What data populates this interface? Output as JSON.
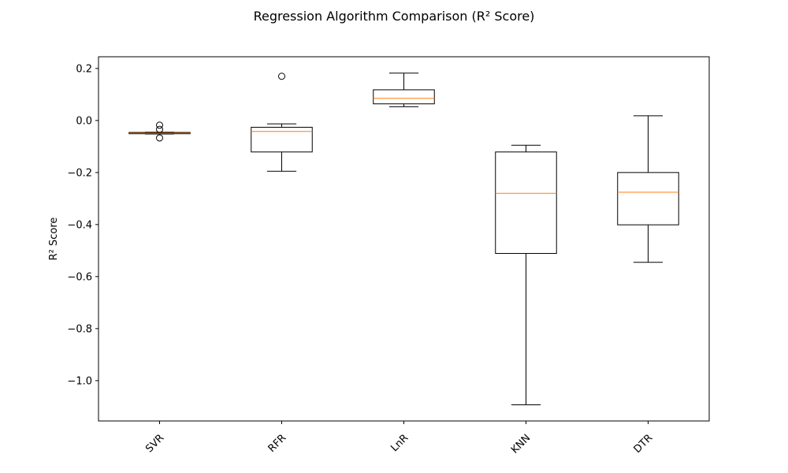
{
  "chart_data": {
    "type": "box",
    "title": "Regression Algorithm Comparison (R² Score)",
    "xlabel": "",
    "ylabel": "R² Score",
    "ylim": [
      -1.155,
      0.245
    ],
    "yticks": [
      0.2,
      0.0,
      -0.2,
      -0.4,
      -0.6,
      -0.8,
      -1.0
    ],
    "ytick_labels": [
      "0.2",
      "0.0",
      "−0.2",
      "−0.4",
      "−0.6",
      "−0.8",
      "−1.0"
    ],
    "grid": false,
    "categories": [
      "SVR",
      "RFR",
      "LnR",
      "KNN",
      "DTR"
    ],
    "boxes": [
      {
        "label": "SVR",
        "whislo": -0.052,
        "q1": -0.051,
        "med": -0.049,
        "q3": -0.046,
        "whishi": -0.045,
        "fliers": [
          -0.018,
          -0.034,
          -0.067
        ]
      },
      {
        "label": "RFR",
        "whislo": -0.195,
        "q1": -0.121,
        "med": -0.042,
        "q3": -0.026,
        "whishi": -0.013,
        "fliers": [
          0.17
        ]
      },
      {
        "label": "LnR",
        "whislo": 0.053,
        "q1": 0.064,
        "med": 0.085,
        "q3": 0.118,
        "whishi": 0.182,
        "fliers": []
      },
      {
        "label": "KNN",
        "whislo": -1.093,
        "q1": -0.511,
        "med": -0.28,
        "q3": -0.121,
        "whishi": -0.095,
        "fliers": []
      },
      {
        "label": "DTR",
        "whislo": -0.545,
        "q1": -0.401,
        "med": -0.276,
        "q3": -0.2,
        "whishi": 0.018,
        "fliers": []
      }
    ],
    "colors": {
      "box": "#000000",
      "median": "#ff7f0e",
      "background": "#ffffff"
    }
  }
}
